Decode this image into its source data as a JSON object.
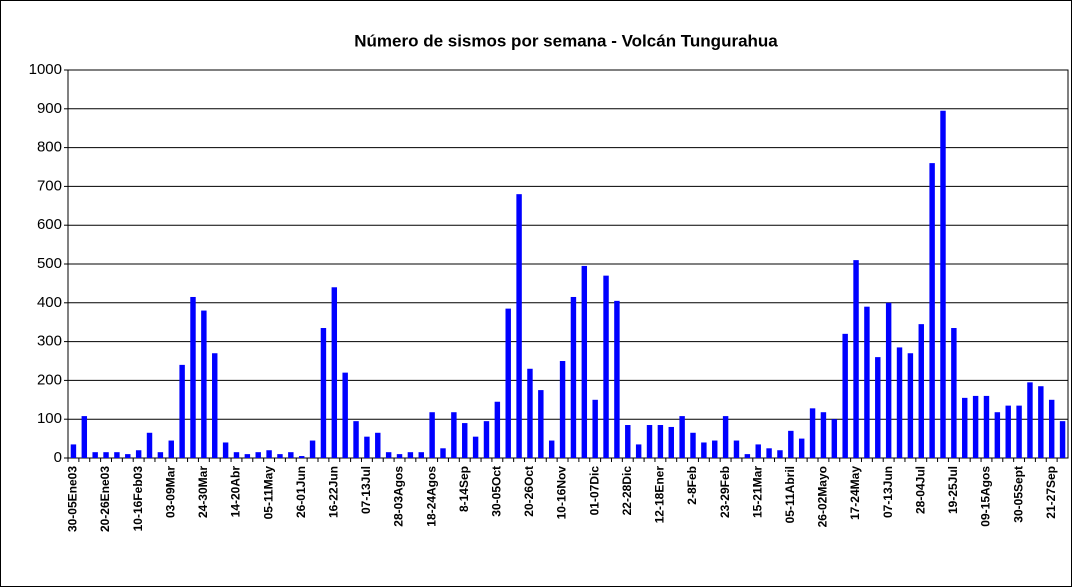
{
  "chart_data": {
    "type": "bar",
    "title": "Número de sismos por semana - Volcán Tungurahua",
    "categories": [
      "30-05Ene03",
      null,
      null,
      "20-26Ene03",
      null,
      null,
      "10-16Feb03",
      null,
      null,
      "03-09Mar",
      null,
      null,
      "24-30Mar",
      null,
      null,
      "14-20Abr",
      null,
      null,
      "05-11May",
      null,
      null,
      "26-01Jun",
      null,
      null,
      "16-22Jun",
      null,
      null,
      "07-13Jul",
      null,
      null,
      "28-03Agos",
      null,
      null,
      "18-24Agos",
      null,
      null,
      "8-14Sep",
      null,
      null,
      "30-05Oct",
      null,
      null,
      "20-26Oct",
      null,
      null,
      "10-16Nov",
      null,
      null,
      "01-07Dic",
      null,
      null,
      "22-28Dic",
      null,
      null,
      "12-18Ener",
      null,
      null,
      "2-8Feb",
      null,
      null,
      "23-29Feb",
      null,
      null,
      "15-21Mar",
      null,
      null,
      "05-11Abril",
      null,
      null,
      "26-02Mayo",
      null,
      null,
      "17-24May",
      null,
      null,
      "07-13Jun",
      null,
      null,
      "28-04Jul",
      null,
      null,
      "19-25Jul",
      null,
      null,
      "09-15Agos",
      null,
      null,
      "30-05Sept",
      null,
      null,
      "21-27Sep",
      null
    ],
    "values": [
      35,
      108,
      15,
      15,
      15,
      10,
      20,
      65,
      15,
      45,
      240,
      415,
      380,
      270,
      40,
      15,
      10,
      15,
      20,
      10,
      15,
      5,
      45,
      335,
      440,
      220,
      95,
      55,
      65,
      15,
      10,
      15,
      15,
      118,
      25,
      118,
      90,
      55,
      95,
      145,
      385,
      680,
      230,
      175,
      45,
      250,
      415,
      495,
      150,
      470,
      405,
      85,
      35,
      85,
      85,
      80,
      108,
      65,
      40,
      45,
      108,
      45,
      10,
      35,
      25,
      20,
      70,
      50,
      128,
      118,
      100,
      320,
      510,
      390,
      260,
      400,
      285,
      270,
      345,
      760,
      895,
      335,
      155,
      160,
      160,
      118,
      135,
      135,
      195,
      185,
      150,
      95
    ],
    "color": "#0000ff",
    "ylim": [
      0,
      1000
    ],
    "yticks": [
      0,
      100,
      200,
      300,
      400,
      500,
      600,
      700,
      800,
      900,
      1000
    ],
    "grid": true
  }
}
